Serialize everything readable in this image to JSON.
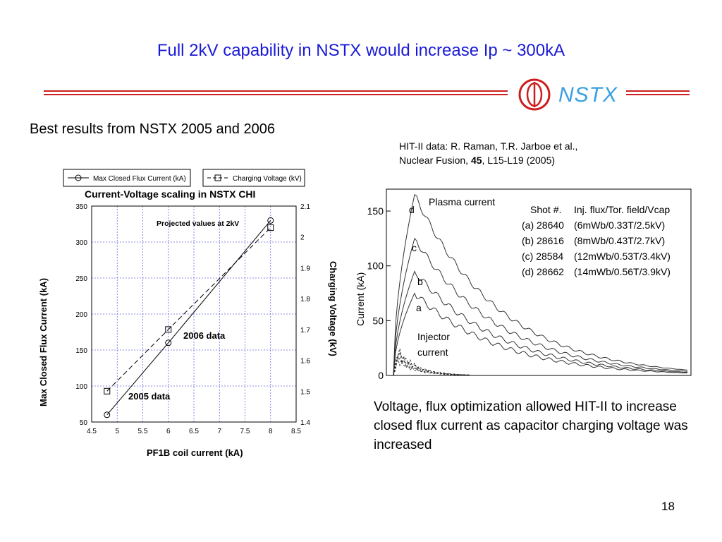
{
  "slide": {
    "title": "Full 2kV capability in NSTX would increase Ip ~ 300kA",
    "logo_text": "NSTX",
    "subtitle": "Best results from NSTX 2005 and 2006",
    "citation_line1": "HIT-II data: R. Raman, T.R. Jarboe et al.,",
    "citation_line2_prefix": "Nuclear Fusion, ",
    "citation_volume": "45",
    "citation_line2_suffix": ", L15-L19 (2005)",
    "caption": "Voltage, flux optimization allowed HIT-II to increase closed flux current as capacitor charging voltage was increased",
    "page_number": "18",
    "colors": {
      "title": "#1a1ad6",
      "rule": "#cc1e1e",
      "logo": "#cc1e1e",
      "logo_text": "#3aa0e0"
    }
  },
  "chart_data": [
    {
      "type": "line",
      "title": "Current-Voltage scaling in NSTX CHI",
      "xlabel": "PF1B coil current (kA)",
      "ylabel": "Max Closed Flux Current (kA)",
      "y2label": "Charging Voltage (kV)",
      "xlim": [
        4.5,
        8.5
      ],
      "ylim": [
        50,
        350
      ],
      "y2lim": [
        1.4,
        2.1
      ],
      "xticks": [
        "4.5",
        "5",
        "5.5",
        "6",
        "6.5",
        "7",
        "7.5",
        "8",
        "8.5"
      ],
      "yticks": [
        "50",
        "100",
        "150",
        "200",
        "250",
        "300",
        "350"
      ],
      "y2ticks": [
        "1.4",
        "1.5",
        "1.6",
        "1.7",
        "1.8",
        "1.9",
        "2",
        "2.1"
      ],
      "grid": true,
      "legend_placement": "top",
      "series": [
        {
          "name": "Max Closed Flux Current (kA)",
          "axis": "left",
          "marker": "circle",
          "dash": false,
          "x": [
            4.8,
            6,
            8
          ],
          "values": [
            60,
            160,
            330
          ]
        },
        {
          "name": "Charging Voltage (kV)",
          "axis": "right",
          "marker": "square",
          "dash": true,
          "x": [
            4.8,
            6,
            8
          ],
          "values": [
            1.5,
            1.7,
            2.03
          ]
        }
      ],
      "annotations": [
        "Projected values at 2kV",
        "2006 data",
        "2005 data"
      ]
    },
    {
      "type": "line",
      "title": "",
      "xlabel": "",
      "ylabel": "Current (kA)",
      "ylim": [
        0,
        170
      ],
      "yticks": [
        "0",
        "50",
        "100",
        "150"
      ],
      "grid": false,
      "series": [
        {
          "name": "d",
          "peak": 165
        },
        {
          "name": "c",
          "peak": 125
        },
        {
          "name": "b",
          "peak": 95
        },
        {
          "name": "a",
          "peak": 75
        }
      ],
      "annotations": [
        "Plasma current",
        "Injector current",
        "d",
        "c",
        "b",
        "a"
      ],
      "table": {
        "header": [
          "Shot #.",
          "Inj. flux/Tor. field/Vcap"
        ],
        "rows": [
          [
            "(a) 28640",
            "(6mWb/0.33T/2.5kV)"
          ],
          [
            "(b) 28616",
            "(8mWb/0.43T/2.7kV)"
          ],
          [
            "(c) 28584",
            "(12mWb/0.53T/3.4kV)"
          ],
          [
            "(d) 28662",
            "(14mWb/0.56T/3.9kV)"
          ]
        ]
      }
    }
  ]
}
